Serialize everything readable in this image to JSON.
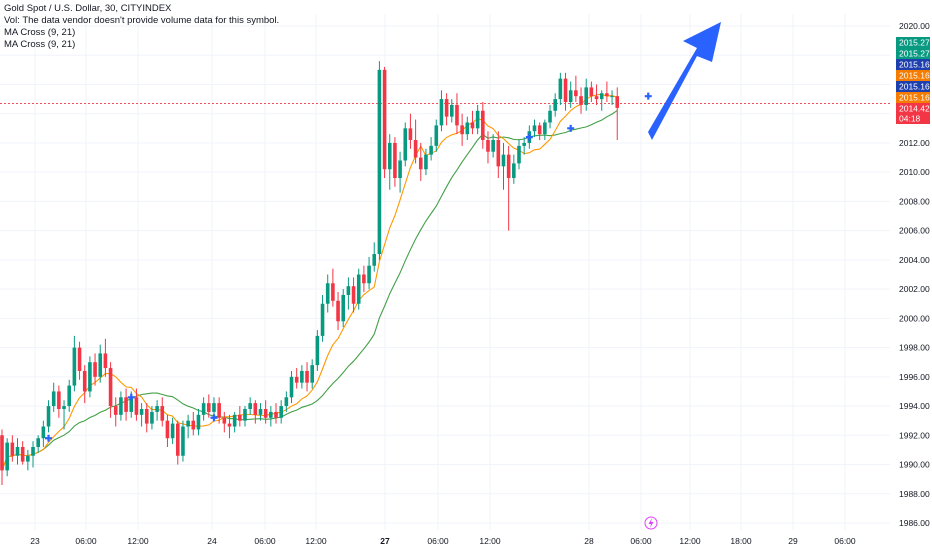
{
  "header": {
    "symbol_line": "Gold Spot / U.S. Dollar, 30, CITYINDEX",
    "volume_note": "Vol: The data vendor doesn't provide volume data for this symbol.",
    "indicator_1": "MA Cross (9, 21)",
    "indicator_2": "MA Cross (9, 21)"
  },
  "colors": {
    "up": "#089981",
    "down": "#f23645",
    "ma_fast": "#ff9800",
    "ma_slow": "#43a047",
    "cross": "#2962ff",
    "arrow": "#2962ff",
    "tag_green": "#089981",
    "tag_orange": "#f57c00",
    "tag_blue": "#1e40af",
    "tag_red": "#f23645"
  },
  "price_tags": [
    {
      "label": "2015.27",
      "color": "green"
    },
    {
      "label": "2015.27",
      "color": "green"
    },
    {
      "label": "2015.16",
      "color": "blue"
    },
    {
      "label": "2015.16",
      "color": "orange"
    },
    {
      "label": "2015.16",
      "color": "blue"
    },
    {
      "label": "2015.16",
      "color": "orange"
    },
    {
      "label": "2014.42",
      "color": "red"
    },
    {
      "label": "04:18",
      "color": "red"
    }
  ],
  "chart_data": {
    "type": "candlestick",
    "title": "Gold Spot / U.S. Dollar, 30, CITYINDEX",
    "y_ticks": [
      "2020.00",
      "2018.00",
      "2016.00",
      "2014.00",
      "2012.00",
      "2010.00",
      "2008.00",
      "2006.00",
      "2004.00",
      "2002.00",
      "2000.00",
      "1998.00",
      "1996.00",
      "1994.00",
      "1992.00",
      "1990.00",
      "1988.00",
      "1986.00"
    ],
    "ylim": [
      1985.5,
      2021.0
    ],
    "x_ticks": [
      "23",
      "06:00",
      "12:00",
      "24",
      "06:00",
      "12:00",
      "27",
      "06:00",
      "12:00",
      "28",
      "06:00",
      "12:00",
      "18:00",
      "29",
      "06:00"
    ],
    "current_price": 2014.42,
    "candles": [
      [
        1992.0,
        1992.4,
        1988.6,
        1989.6
      ],
      [
        1989.6,
        1991.8,
        1989.2,
        1991.5
      ],
      [
        1991.5,
        1992.0,
        1990.2,
        1990.6
      ],
      [
        1990.6,
        1991.8,
        1990.0,
        1991.2
      ],
      [
        1991.2,
        1991.6,
        1990.0,
        1990.2
      ],
      [
        1990.2,
        1991.0,
        1989.6,
        1990.6
      ],
      [
        1990.6,
        1991.6,
        1989.8,
        1991.2
      ],
      [
        1991.2,
        1992.0,
        1990.8,
        1991.8
      ],
      [
        1991.8,
        1993.0,
        1991.2,
        1992.6
      ],
      [
        1992.6,
        1994.4,
        1992.2,
        1994.0
      ],
      [
        1994.0,
        1995.6,
        1993.6,
        1995.0
      ],
      [
        1995.0,
        1995.4,
        1993.2,
        1993.8
      ],
      [
        1993.8,
        1994.4,
        1992.4,
        1994.0
      ],
      [
        1994.0,
        1995.8,
        1993.6,
        1995.4
      ],
      [
        1995.4,
        1998.8,
        1995.0,
        1998.0
      ],
      [
        1998.0,
        1998.4,
        1995.8,
        1996.4
      ],
      [
        1996.4,
        1996.8,
        1994.2,
        1995.0
      ],
      [
        1995.0,
        1997.4,
        1994.6,
        1997.0
      ],
      [
        1997.0,
        1997.6,
        1995.4,
        1996.0
      ],
      [
        1996.0,
        1998.2,
        1995.6,
        1997.6
      ],
      [
        1997.6,
        1998.6,
        1996.0,
        1996.6
      ],
      [
        1996.6,
        1997.0,
        1993.2,
        1994.0
      ],
      [
        1994.0,
        1994.6,
        1992.6,
        1993.4
      ],
      [
        1993.4,
        1995.0,
        1993.0,
        1994.6
      ],
      [
        1994.6,
        1995.2,
        1993.0,
        1993.6
      ],
      [
        1993.6,
        1995.0,
        1993.2,
        1994.6
      ],
      [
        1994.6,
        1995.2,
        1993.0,
        1993.4
      ],
      [
        1993.4,
        1994.2,
        1992.6,
        1993.8
      ],
      [
        1993.8,
        1994.2,
        1992.2,
        1992.8
      ],
      [
        1992.8,
        1994.0,
        1992.4,
        1993.6
      ],
      [
        1993.6,
        1994.4,
        1993.0,
        1994.0
      ],
      [
        1994.0,
        1994.6,
        1992.6,
        1993.0
      ],
      [
        1993.0,
        1993.4,
        1991.2,
        1991.8
      ],
      [
        1991.8,
        1993.2,
        1991.4,
        1992.8
      ],
      [
        1992.8,
        1993.0,
        1990.0,
        1990.6
      ],
      [
        1990.6,
        1993.0,
        1990.2,
        1992.6
      ],
      [
        1992.6,
        1993.4,
        1991.8,
        1993.0
      ],
      [
        1993.0,
        1993.6,
        1992.0,
        1992.4
      ],
      [
        1992.4,
        1993.8,
        1992.0,
        1993.4
      ],
      [
        1993.4,
        1994.6,
        1993.0,
        1994.2
      ],
      [
        1994.2,
        1994.8,
        1993.2,
        1993.6
      ],
      [
        1993.6,
        1994.6,
        1993.2,
        1994.2
      ],
      [
        1994.2,
        1994.6,
        1992.8,
        1993.2
      ],
      [
        1993.2,
        1993.6,
        1992.2,
        1992.8
      ],
      [
        1992.8,
        1993.4,
        1991.8,
        1992.6
      ],
      [
        1992.6,
        1993.6,
        1992.2,
        1993.4
      ],
      [
        1993.4,
        1994.0,
        1992.6,
        1993.0
      ],
      [
        1993.0,
        1994.0,
        1992.6,
        1993.8
      ],
      [
        1993.8,
        1994.6,
        1993.4,
        1994.2
      ],
      [
        1994.2,
        1994.4,
        1992.8,
        1993.4
      ],
      [
        1993.4,
        1994.2,
        1993.0,
        1993.8
      ],
      [
        1993.8,
        1994.4,
        1992.8,
        1993.2
      ],
      [
        1993.2,
        1994.0,
        1992.6,
        1993.6
      ],
      [
        1993.6,
        1994.2,
        1992.8,
        1993.2
      ],
      [
        1993.2,
        1994.4,
        1992.8,
        1994.0
      ],
      [
        1994.0,
        1995.0,
        1993.6,
        1994.6
      ],
      [
        1994.6,
        1996.4,
        1994.2,
        1996.0
      ],
      [
        1996.0,
        1996.6,
        1995.2,
        1995.6
      ],
      [
        1995.6,
        1996.8,
        1995.2,
        1996.4
      ],
      [
        1996.4,
        1997.0,
        1995.0,
        1995.6
      ],
      [
        1995.6,
        1997.2,
        1995.2,
        1996.8
      ],
      [
        1996.8,
        1999.2,
        1996.4,
        1998.8
      ],
      [
        1998.8,
        2001.6,
        1998.4,
        2001.0
      ],
      [
        2001.0,
        2003.0,
        2000.4,
        2002.4
      ],
      [
        2002.4,
        2003.4,
        2000.8,
        2001.2
      ],
      [
        2001.2,
        2001.8,
        1999.2,
        1999.8
      ],
      [
        1999.8,
        2002.0,
        1999.4,
        2001.6
      ],
      [
        2001.6,
        2002.8,
        2000.6,
        2002.2
      ],
      [
        2002.2,
        2002.8,
        2000.4,
        2001.0
      ],
      [
        2001.0,
        2003.4,
        2000.6,
        2003.0
      ],
      [
        2003.0,
        2003.6,
        2001.8,
        2002.4
      ],
      [
        2002.4,
        2004.2,
        2002.0,
        2003.6
      ],
      [
        2003.6,
        2005.2,
        2003.2,
        2004.4
      ],
      [
        2004.4,
        2017.6,
        2004.0,
        2017.0
      ],
      [
        2017.0,
        2017.2,
        2009.6,
        2010.2
      ],
      [
        2010.2,
        2012.6,
        2008.8,
        2012.0
      ],
      [
        2012.0,
        2012.4,
        2009.0,
        2009.6
      ],
      [
        2009.6,
        2011.4,
        2008.6,
        2010.8
      ],
      [
        2010.8,
        2013.4,
        2010.4,
        2013.0
      ],
      [
        2013.0,
        2014.0,
        2011.6,
        2012.2
      ],
      [
        2012.2,
        2013.6,
        2010.6,
        2011.0
      ],
      [
        2011.0,
        2012.0,
        2009.4,
        2010.2
      ],
      [
        2010.2,
        2011.6,
        2009.8,
        2011.2
      ],
      [
        2011.2,
        2012.4,
        2010.8,
        2011.8
      ],
      [
        2011.8,
        2013.6,
        2011.4,
        2013.2
      ],
      [
        2013.2,
        2015.6,
        2012.8,
        2015.0
      ],
      [
        2015.0,
        2015.4,
        2013.2,
        2013.8
      ],
      [
        2013.8,
        2015.0,
        2013.4,
        2014.6
      ],
      [
        2014.6,
        2015.4,
        2012.6,
        2013.2
      ],
      [
        2013.2,
        2014.0,
        2011.8,
        2012.6
      ],
      [
        2012.6,
        2013.8,
        2012.2,
        2013.4
      ],
      [
        2013.4,
        2014.2,
        2012.6,
        2013.0
      ],
      [
        2013.0,
        2014.6,
        2012.6,
        2014.2
      ],
      [
        2014.2,
        2014.8,
        2011.6,
        2012.2
      ],
      [
        2012.2,
        2012.8,
        2010.6,
        2011.4
      ],
      [
        2011.4,
        2012.6,
        2011.0,
        2012.2
      ],
      [
        2012.2,
        2012.8,
        2009.6,
        2010.4
      ],
      [
        2010.4,
        2012.0,
        2008.8,
        2011.2
      ],
      [
        2011.2,
        2011.8,
        2006.0,
        2009.6
      ],
      [
        2009.6,
        2011.2,
        2009.2,
        2010.6
      ],
      [
        2010.6,
        2012.2,
        2010.2,
        2011.8
      ],
      [
        2011.8,
        2012.4,
        2011.2,
        2012.0
      ],
      [
        2012.0,
        2013.2,
        2011.6,
        2012.8
      ],
      [
        2012.8,
        2013.6,
        2012.4,
        2013.2
      ],
      [
        2013.2,
        2013.4,
        2012.2,
        2012.6
      ],
      [
        2012.6,
        2013.6,
        2012.2,
        2013.4
      ],
      [
        2013.4,
        2014.6,
        2013.0,
        2014.2
      ],
      [
        2014.2,
        2015.4,
        2013.8,
        2015.0
      ],
      [
        2015.0,
        2016.8,
        2014.6,
        2016.4
      ],
      [
        2016.4,
        2016.8,
        2014.2,
        2014.8
      ],
      [
        2014.8,
        2016.2,
        2014.4,
        2015.6
      ],
      [
        2015.6,
        2016.6,
        2014.8,
        2015.2
      ],
      [
        2015.2,
        2015.8,
        2014.0,
        2014.6
      ],
      [
        2014.6,
        2016.4,
        2014.2,
        2015.8
      ],
      [
        2015.8,
        2016.2,
        2014.8,
        2015.2
      ],
      [
        2015.2,
        2016.0,
        2014.6,
        2015.0
      ],
      [
        2015.0,
        2015.6,
        2014.2,
        2015.4
      ],
      [
        2015.4,
        2016.2,
        2014.8,
        2015.2
      ],
      [
        2015.2,
        2015.6,
        2014.6,
        2015.2
      ],
      [
        2015.2,
        2015.8,
        2012.2,
        2014.4
      ]
    ],
    "ma_fast_period": 9,
    "ma_slow_period": 21,
    "cross_markers": [
      {
        "index": 9,
        "price": 1991.8
      },
      {
        "index": 25,
        "price": 1994.6
      },
      {
        "index": 41,
        "price": 1993.2
      },
      {
        "index": 102,
        "price": 2012.4
      },
      {
        "index": 110,
        "price": 2013.0
      },
      {
        "index": 125,
        "price": 2015.2
      }
    ]
  }
}
